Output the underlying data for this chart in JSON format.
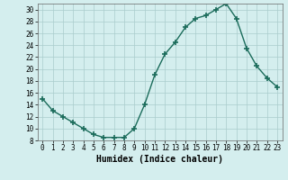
{
  "x": [
    0,
    1,
    2,
    3,
    4,
    5,
    6,
    7,
    8,
    9,
    10,
    11,
    12,
    13,
    14,
    15,
    16,
    17,
    18,
    19,
    20,
    21,
    22,
    23
  ],
  "y": [
    15,
    13,
    12,
    11,
    10,
    9,
    8.5,
    8.5,
    8.5,
    10,
    14,
    19,
    22.5,
    24.5,
    27,
    28.5,
    29,
    30,
    31,
    28.5,
    23.5,
    20.5,
    18.5,
    17
  ],
  "line_color": "#1a6b5a",
  "marker": "+",
  "marker_size": 4,
  "marker_lw": 1.2,
  "line_width": 1.0,
  "bg_color": "#d4eeee",
  "grid_color": "#aacccc",
  "xlabel": "Humidex (Indice chaleur)",
  "xlabel_fontsize": 7,
  "ylim": [
    8,
    31
  ],
  "xlim": [
    -0.5,
    23.5
  ],
  "yticks": [
    8,
    10,
    12,
    14,
    16,
    18,
    20,
    22,
    24,
    26,
    28,
    30
  ],
  "xticks": [
    0,
    1,
    2,
    3,
    4,
    5,
    6,
    7,
    8,
    9,
    10,
    11,
    12,
    13,
    14,
    15,
    16,
    17,
    18,
    19,
    20,
    21,
    22,
    23
  ],
  "tick_fontsize": 5.5
}
